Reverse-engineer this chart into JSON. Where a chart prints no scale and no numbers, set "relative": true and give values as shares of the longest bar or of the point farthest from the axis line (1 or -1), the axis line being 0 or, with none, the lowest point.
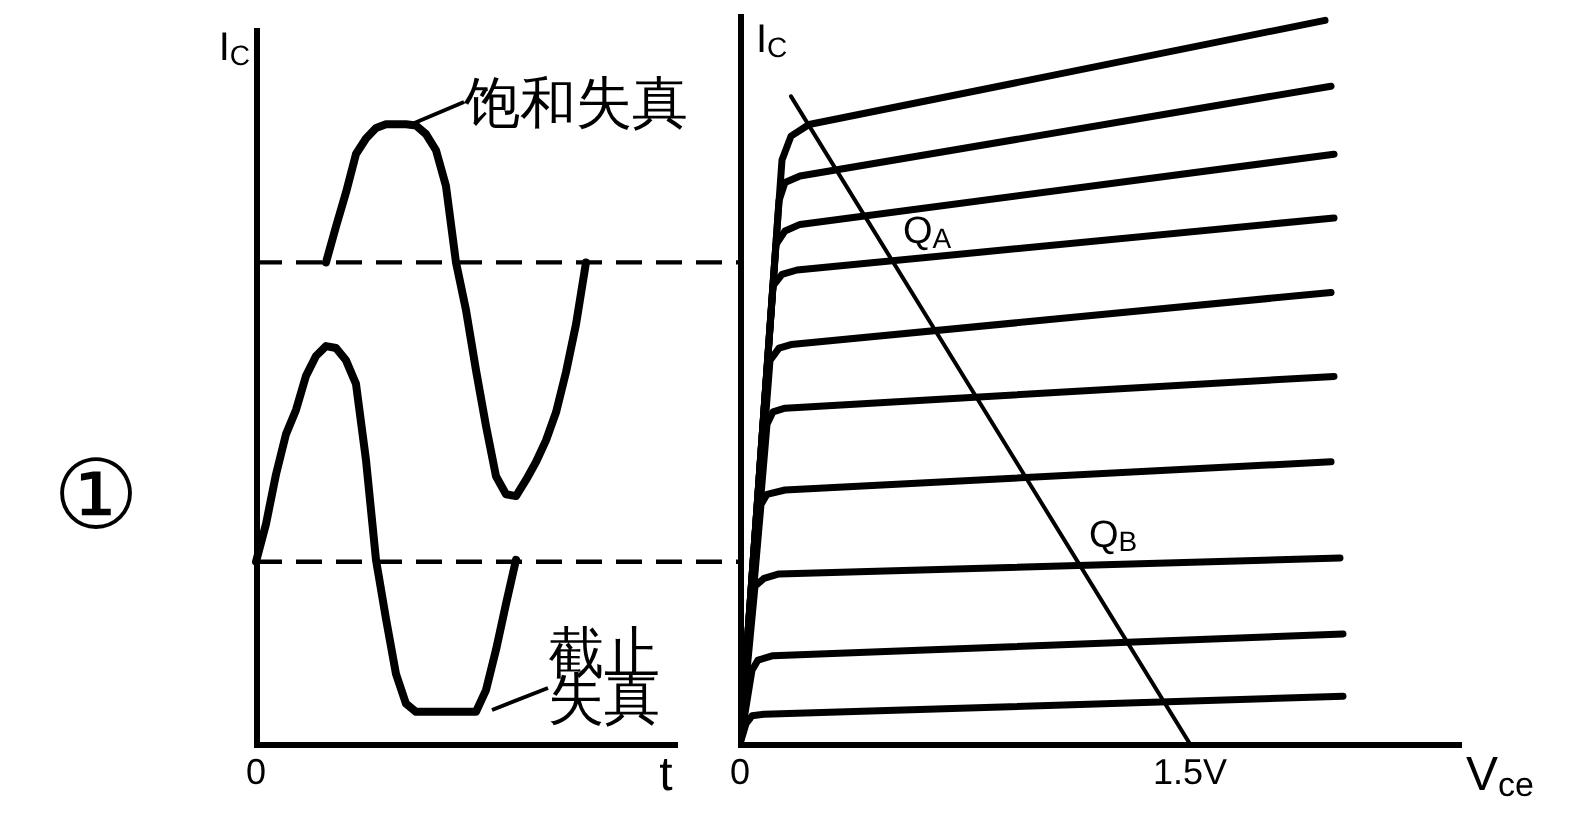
{
  "chart_data": [
    {
      "type": "line",
      "relative": true,
      "xlabel": "t",
      "ylabel": "I$_{C}$",
      "categories": [
        null,
        null,
        null,
        null,
        null,
        null,
        null,
        null,
        null,
        null,
        null,
        null,
        null,
        null,
        null,
        null,
        null,
        null,
        null,
        null,
        null,
        null,
        null,
        null,
        null,
        null,
        null,
        null,
        null,
        null,
        null,
        null,
        null,
        null,
        null,
        null,
        null,
        null,
        null,
        null,
        null,
        null,
        null
      ],
      "series": [
        {
          "color": "#000000",
          "values": [
            null,
            null,
            null,
            null,
            null,
            null,
            null,
            0.777,
            0.835,
            0.89,
            0.952,
            0.977,
            0.994,
            1,
            1,
            1,
            0.998,
            0.984,
            0.958,
            0.9,
            0.777,
            0.7,
            0.603,
            0.513,
            0.432,
            0.403,
            0.4,
            0.426,
            0.455,
            0.49,
            0.535,
            0.6,
            0.677,
            0.777,
            null,
            null,
            null,
            null,
            null,
            null,
            null,
            null,
            null
          ]
        },
        {
          "color": "#000000",
          "values": [
            0.294,
            0.355,
            0.435,
            0.5,
            0.539,
            0.594,
            0.626,
            0.642,
            0.639,
            0.619,
            0.581,
            0.458,
            0.297,
            0.202,
            0.113,
            0.065,
            0.052,
            0.052,
            0.052,
            0.052,
            0.052,
            0.052,
            0.052,
            0.087,
            0.152,
            0.226,
            0.297,
            null,
            null,
            null,
            null,
            null,
            null,
            null,
            null,
            null,
            null,
            null,
            null,
            null,
            null,
            null,
            null
          ]
        }
      ],
      "ref_lines": [
        {
          "axis": "y",
          "value": 0.777,
          "line_style": "dashed"
        },
        {
          "axis": "y",
          "value": 0.294,
          "line_style": "dashed"
        }
      ],
      "annotations": [
        "饱和失真",
        "截止失真",
        "①",
        "0"
      ]
    },
    {
      "type": "line",
      "relative": true,
      "xlabel": "V$_{ce}$",
      "ylabel": "I$_{C}$",
      "xlim": [
        0,
        2.4
      ],
      "xticks": [
        0,
        {
          "value": 1.5,
          "label": "1.5V"
        }
      ],
      "series": [
        {
          "color": "#000000",
          "x": [
            0,
            0.14,
            0.17,
            0.23,
            1.95
          ],
          "values": [
            0,
            0.807,
            0.84,
            0.856,
            1
          ]
        },
        {
          "color": "#000000",
          "x": [
            0,
            0.13,
            0.15,
            0.2,
            1.97
          ],
          "values": [
            0,
            0.751,
            0.776,
            0.785,
            0.909
          ]
        },
        {
          "color": "#000000",
          "x": [
            0,
            0.12,
            0.15,
            0.2,
            1.98
          ],
          "values": [
            0,
            0.69,
            0.709,
            0.718,
            0.815
          ]
        },
        {
          "color": "#000000",
          "x": [
            0,
            0.11,
            0.14,
            0.19,
            1.98
          ],
          "values": [
            0,
            0.633,
            0.649,
            0.655,
            0.727
          ]
        },
        {
          "color": "#000000",
          "x": [
            0,
            0.1,
            0.13,
            0.17,
            1.97
          ],
          "values": [
            0,
            0.53,
            0.547,
            0.552,
            0.624
          ]
        },
        {
          "color": "#000000",
          "x": [
            0,
            0.09,
            0.11,
            0.15,
            1.98
          ],
          "values": [
            0,
            0.442,
            0.459,
            0.464,
            0.508
          ]
        },
        {
          "color": "#000000",
          "x": [
            0,
            0.07,
            0.09,
            0.15,
            1.97
          ],
          "values": [
            0,
            0.331,
            0.345,
            0.351,
            0.39
          ]
        },
        {
          "color": "#000000",
          "x": [
            0,
            0.05,
            0.08,
            0.13,
            2.0
          ],
          "values": [
            0,
            0.218,
            0.229,
            0.235,
            0.257
          ]
        },
        {
          "color": "#000000",
          "x": [
            0,
            0.04,
            0.06,
            0.11,
            2.01
          ],
          "values": [
            0,
            0.102,
            0.116,
            0.122,
            0.152
          ]
        },
        {
          "color": "#000000",
          "x": [
            0,
            0.02,
            0.04,
            0.08,
            2.01
          ],
          "values": [
            0,
            0.028,
            0.039,
            0.041,
            0.066
          ]
        },
        {
          "color": "#000000",
          "x": [
            0.17,
            1.5
          ],
          "values": [
            0.895,
            0
          ]
        }
      ],
      "annotations": [
        {
          "text": "Q$_{A}$",
          "x": 0.51,
          "y": 0.667
        },
        {
          "text": "Q$_{B}$",
          "x": 1.13,
          "y": 0.248
        }
      ]
    }
  ]
}
